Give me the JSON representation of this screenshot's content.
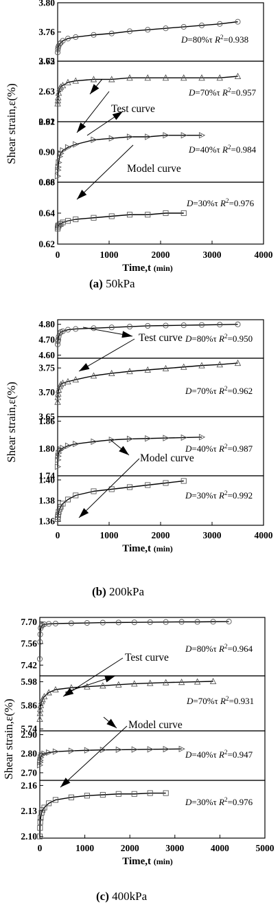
{
  "figure_captions": [
    {
      "label": "(a)",
      "text": "50kPa"
    },
    {
      "label": "(b)",
      "text": "200kPa"
    },
    {
      "label": "(c)",
      "text": "400kPa"
    }
  ],
  "chart_data": [
    {
      "type": "scatter",
      "title": "(a) 50kPa",
      "xlabel": "Time,t",
      "xlabel_unit": "(min)",
      "ylabel": "Shear strain,ε(%)",
      "xlim": [
        0,
        4000
      ],
      "xticks": [
        "0",
        "1000",
        "2000",
        "3000",
        "4000"
      ],
      "annotations": [
        "Test curve",
        "Model curve"
      ],
      "panels": [
        {
          "label": "D=80%τ",
          "r2": "R2=0.938",
          "marker": "circle",
          "ylim": [
            3.72,
            3.8
          ],
          "yticks": [
            "3.72",
            "3.76",
            "3.80"
          ],
          "x": [
            0,
            5,
            10,
            20,
            40,
            60,
            100,
            200,
            350,
            700,
            1050,
            1400,
            1750,
            2100,
            2450,
            2800,
            3150,
            3500
          ],
          "y": [
            3.732,
            3.736,
            3.739,
            3.741,
            3.744,
            3.745,
            3.748,
            3.751,
            3.753,
            3.756,
            3.758,
            3.761,
            3.763,
            3.765,
            3.767,
            3.769,
            3.771,
            3.774
          ]
        },
        {
          "label": "D=70%τ",
          "r2": "R2=0.957",
          "marker": "triangle",
          "ylim": [
            2.61,
            2.65
          ],
          "yticks": [
            "2.61",
            "2.63",
            "2.65"
          ],
          "x": [
            0,
            5,
            10,
            20,
            40,
            60,
            100,
            200,
            350,
            700,
            1050,
            1400,
            1750,
            2100,
            2450,
            2800,
            3150,
            3500
          ],
          "y": [
            2.622,
            2.624,
            2.626,
            2.629,
            2.632,
            2.633,
            2.634,
            2.636,
            2.637,
            2.638,
            2.638,
            2.639,
            2.639,
            2.639,
            2.639,
            2.639,
            2.639,
            2.64
          ]
        },
        {
          "label": "D=40%τ",
          "r2": "R2=0.984",
          "marker": "triangle-right",
          "ylim": [
            0.88,
            0.92
          ],
          "yticks": [
            "0.88",
            "0.90",
            "0.92"
          ],
          "x": [
            0,
            5,
            10,
            20,
            40,
            60,
            100,
            200,
            350,
            700,
            1050,
            1400,
            1750,
            2100,
            2450,
            2800
          ],
          "y": [
            0.884,
            0.888,
            0.89,
            0.893,
            0.897,
            0.899,
            0.901,
            0.903,
            0.905,
            0.908,
            0.909,
            0.91,
            0.91,
            0.911,
            0.911,
            0.911
          ]
        },
        {
          "label": "D=30%τ",
          "r2": "R2=0.976",
          "marker": "square",
          "ylim": [
            0.62,
            0.66
          ],
          "yticks": [
            "0.62",
            "0.64",
            "0.66"
          ],
          "x": [
            0,
            5,
            10,
            20,
            40,
            60,
            100,
            200,
            350,
            700,
            1050,
            1400,
            1750,
            2100,
            2450
          ],
          "y": [
            0.63,
            0.631,
            0.632,
            0.632,
            0.633,
            0.633,
            0.634,
            0.635,
            0.636,
            0.637,
            0.638,
            0.639,
            0.639,
            0.64,
            0.64
          ]
        }
      ]
    },
    {
      "type": "scatter",
      "title": "(b) 200kPa",
      "xlabel": "Time,t",
      "xlabel_unit": "(min)",
      "ylabel": "Shear strain,ε(%)",
      "xlim": [
        0,
        4000
      ],
      "xticks": [
        "0",
        "1000",
        "2000",
        "3000",
        "4000"
      ],
      "annotations": [
        "Test curve",
        "Model curve"
      ],
      "panels": [
        {
          "label": "D=80%τ",
          "r2": "R2=0.950",
          "marker": "circle",
          "ylim": [
            4.58,
            4.83
          ],
          "yticks": [
            "4.60",
            "4.70",
            "4.80"
          ],
          "x": [
            0,
            5,
            10,
            20,
            40,
            60,
            100,
            200,
            350,
            700,
            1050,
            1400,
            1750,
            2100,
            2450,
            2800,
            3150,
            3500
          ],
          "y": [
            4.67,
            4.69,
            4.7,
            4.72,
            4.74,
            4.75,
            4.755,
            4.765,
            4.77,
            4.775,
            4.78,
            4.785,
            4.79,
            4.792,
            4.794,
            4.796,
            4.798,
            4.8
          ]
        },
        {
          "label": "D=70%τ",
          "r2": "R2=0.962",
          "marker": "triangle",
          "ylim": [
            3.65,
            3.77
          ],
          "yticks": [
            "3.65",
            "3.70",
            "3.75"
          ],
          "x": [
            0,
            5,
            10,
            20,
            40,
            60,
            100,
            200,
            350,
            700,
            1050,
            1400,
            1750,
            2100,
            2450,
            2800,
            3150,
            3500
          ],
          "y": [
            3.68,
            3.69,
            3.697,
            3.705,
            3.712,
            3.716,
            3.719,
            3.722,
            3.726,
            3.734,
            3.739,
            3.743,
            3.746,
            3.749,
            3.752,
            3.755,
            3.757,
            3.76
          ]
        },
        {
          "label": "D=40%τ",
          "r2": "R2=0.987",
          "marker": "triangle-right",
          "ylim": [
            1.74,
            1.87
          ],
          "yticks": [
            "1.74",
            "1.80",
            "1.86"
          ],
          "x": [
            0,
            5,
            10,
            20,
            40,
            60,
            100,
            200,
            350,
            700,
            1050,
            1400,
            1750,
            2100,
            2450,
            2800
          ],
          "y": [
            1.76,
            1.775,
            1.783,
            1.79,
            1.796,
            1.798,
            1.801,
            1.806,
            1.81,
            1.815,
            1.819,
            1.821,
            1.822,
            1.823,
            1.824,
            1.825
          ]
        },
        {
          "label": "D=30%τ",
          "r2": "R2=0.992",
          "marker": "square",
          "ylim": [
            1.356,
            1.404
          ],
          "yticks": [
            "1.36",
            "1.38",
            "1.40"
          ],
          "x": [
            0,
            5,
            10,
            20,
            40,
            60,
            100,
            200,
            350,
            700,
            1050,
            1400,
            1750,
            2100,
            2450
          ],
          "y": [
            1.362,
            1.364,
            1.366,
            1.369,
            1.372,
            1.374,
            1.377,
            1.381,
            1.385,
            1.389,
            1.391,
            1.393,
            1.395,
            1.397,
            1.399
          ]
        }
      ]
    },
    {
      "type": "scatter",
      "title": "(c) 400kPa",
      "xlabel": "Time,t",
      "xlabel_unit": "(min)",
      "ylabel": "Shear strain,ε(%)",
      "xlim": [
        0,
        5000
      ],
      "xticks": [
        "0",
        "1000",
        "2000",
        "3000",
        "4000",
        "5000"
      ],
      "annotations": [
        "Test curve",
        "Model curve"
      ],
      "panels": [
        {
          "label": "D=80%τ",
          "r2": "R2=0.964",
          "marker": "circle",
          "ylim": [
            7.35,
            7.73
          ],
          "yticks": [
            "7.42",
            "7.56",
            "7.70"
          ],
          "x": [
            0,
            5,
            10,
            20,
            40,
            60,
            100,
            200,
            350,
            700,
            1050,
            1400,
            1750,
            2100,
            2450,
            2800,
            3150,
            3500,
            3850,
            4200
          ],
          "y": [
            7.46,
            7.57,
            7.62,
            7.66,
            7.675,
            7.68,
            7.685,
            7.688,
            7.69,
            7.692,
            7.694,
            7.696,
            7.697,
            7.698,
            7.699,
            7.7,
            7.701,
            7.701,
            7.702,
            7.703
          ]
        },
        {
          "label": "D=70%τ",
          "r2": "R2=0.931",
          "marker": "triangle",
          "ylim": [
            5.73,
            6.01
          ],
          "yticks": [
            "5.74",
            "5.86",
            "5.98"
          ],
          "x": [
            0,
            5,
            10,
            20,
            40,
            60,
            100,
            200,
            350,
            700,
            1050,
            1400,
            1750,
            2100,
            2450,
            2800,
            3150,
            3500,
            3850
          ],
          "y": [
            5.79,
            5.82,
            5.84,
            5.86,
            5.88,
            5.89,
            5.905,
            5.925,
            5.94,
            5.95,
            5.955,
            5.96,
            5.965,
            5.97,
            5.973,
            5.976,
            5.978,
            5.98,
            5.982
          ]
        },
        {
          "label": "D=40%τ",
          "r2": "R2=0.947",
          "marker": "triangle-right",
          "ylim": [
            2.66,
            2.92
          ],
          "yticks": [
            "2.70",
            "2.80",
            "2.90"
          ],
          "x": [
            0,
            5,
            10,
            20,
            40,
            60,
            100,
            200,
            350,
            700,
            1050,
            1400,
            1750,
            2100,
            2450,
            2800,
            3150
          ],
          "y": [
            2.74,
            2.755,
            2.765,
            2.78,
            2.792,
            2.796,
            2.8,
            2.806,
            2.811,
            2.815,
            2.818,
            2.82,
            2.821,
            2.822,
            2.823,
            2.824,
            2.825
          ]
        },
        {
          "label": "D=30%τ",
          "r2": "R2=0.976",
          "marker": "square",
          "ylim": [
            2.098,
            2.166
          ],
          "yticks": [
            "2.10",
            "2.13",
            "2.16"
          ],
          "x": [
            0,
            5,
            10,
            20,
            40,
            60,
            100,
            200,
            350,
            700,
            1050,
            1400,
            1750,
            2100,
            2450,
            2800
          ],
          "y": [
            2.1,
            2.11,
            2.117,
            2.122,
            2.128,
            2.131,
            2.134,
            2.139,
            2.143,
            2.146,
            2.148,
            2.149,
            2.15,
            2.15,
            2.151,
            2.151
          ]
        }
      ]
    }
  ]
}
